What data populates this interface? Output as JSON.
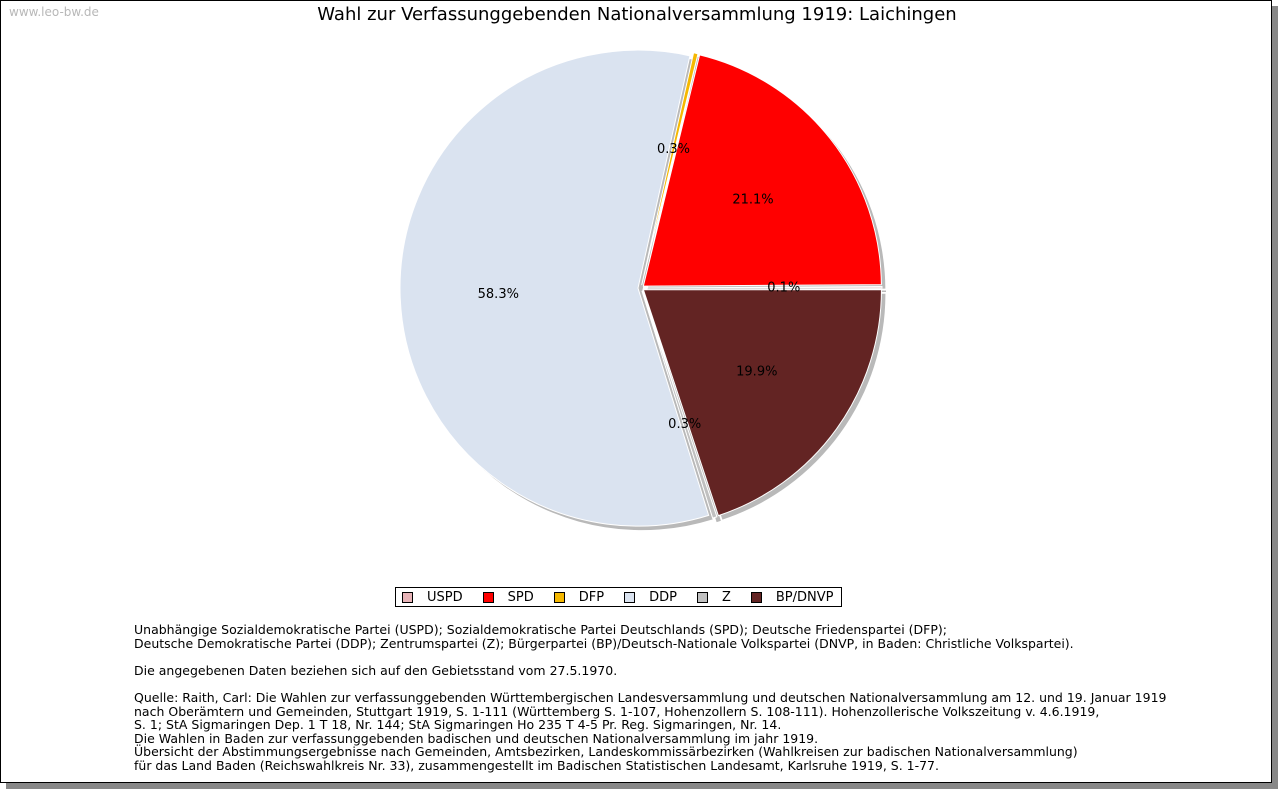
{
  "watermark": "www.leo-bw.de",
  "chart_data": {
    "type": "pie",
    "title": "Wahl zur Verfassunggebenden Nationalversammlung 1919: Laichingen",
    "start_angle_deg": 0,
    "direction": "counterclockwise",
    "slices": [
      {
        "name": "USPD",
        "value": 0.1,
        "label": "0.1%",
        "color": "#e8b4b8"
      },
      {
        "name": "SPD",
        "value": 21.1,
        "label": "21.1%",
        "color": "#ff0000"
      },
      {
        "name": "DFP",
        "value": 0.3,
        "label": "0.3%",
        "color": "#f5b800"
      },
      {
        "name": "DDP",
        "value": 58.3,
        "label": "58.3%",
        "color": "#dae3f0"
      },
      {
        "name": "Z",
        "value": 0.3,
        "label": "0.3%",
        "color": "#c0c0c0"
      },
      {
        "name": "BP/DNVP",
        "value": 19.9,
        "label": "19.9%",
        "color": "#632423"
      }
    ],
    "legend": [
      "USPD",
      "SPD",
      "DFP",
      "DDP",
      "Z",
      "BP/DNVP"
    ],
    "legend_position": "bottom"
  },
  "notes": {
    "parties_1": "Unabhängige Sozialdemokratische Partei (USPD); Sozialdemokratische Partei Deutschlands (SPD); Deutsche Friedenspartei (DFP);",
    "parties_2": "Deutsche Demokratische Partei (DDP); Zentrumspartei (Z); Bürgerpartei (BP)/Deutsch-Nationale Volkspartei (DNVP, in Baden: Christliche Volkspartei).",
    "territory": "Die angegebenen Daten beziehen sich auf den Gebietsstand vom 27.5.1970.",
    "source_1": "Quelle: Raith, Carl: Die Wahlen zur verfassunggebenden Württembergischen Landesversammlung und deutschen Nationalversammlung am 12. und 19. Januar 1919",
    "source_2": "nach Oberämtern und Gemeinden, Stuttgart 1919, S. 1-111 (Württemberg S. 1-107, Hohenzollern S. 108-111). Hohenzollerische Volkszeitung v. 4.6.1919,",
    "source_3": "S. 1; StA Sigmaringen Dep. 1 T 18, Nr. 144; StA Sigmaringen Ho 235 T 4-5 Pr. Reg. Sigmaringen, Nr. 14.",
    "source_4": "Die Wahlen in Baden zur verfassunggebenden badischen und deutschen Nationalversammlung im jahr 1919.",
    "source_5": "Übersicht der Abstimmungsergebnisse nach Gemeinden, Amtsbezirken, Landeskommissärbezirken (Wahlkreisen zur badischen Nationalversammlung)",
    "source_6": "für das Land Baden (Reichswahlkreis Nr. 33), zusammengestellt im Badischen Statistischen Landesamt, Karlsruhe 1919, S. 1-77."
  }
}
